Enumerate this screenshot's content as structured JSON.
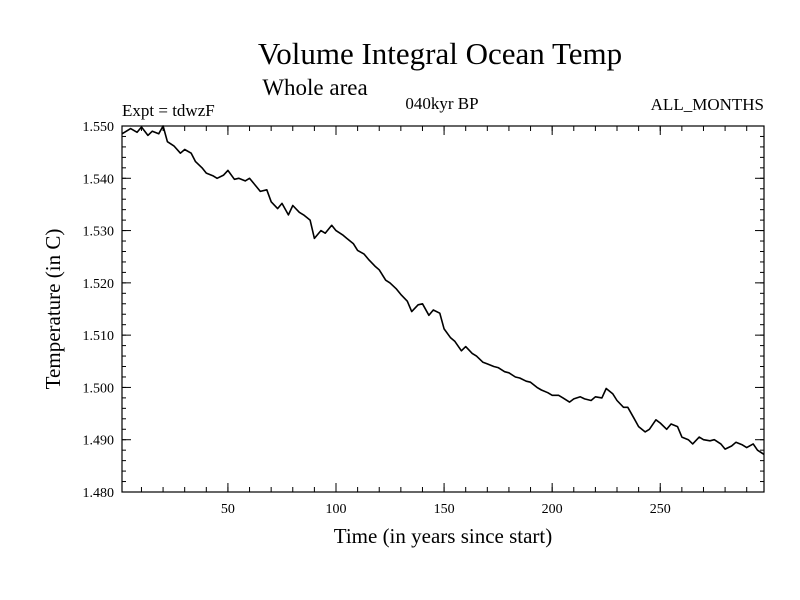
{
  "chart_data": {
    "type": "line",
    "title": "Volume Integral Ocean Temp",
    "subtitle": "Whole area",
    "annotations": {
      "expt": "Expt = tdwzF",
      "period": "040kyr BP",
      "months": "ALL_MONTHS"
    },
    "xlabel": "Time (in years since start)",
    "ylabel": "Temperature (in C)",
    "xlim": [
      1,
      298
    ],
    "ylim": [
      1.48,
      1.55
    ],
    "xticks": [
      50,
      100,
      150,
      200,
      250
    ],
    "yticks": [
      "1.480",
      "1.490",
      "1.500",
      "1.510",
      "1.520",
      "1.530",
      "1.540",
      "1.550"
    ],
    "grid": false,
    "line_color": "#000000",
    "series": [
      {
        "x": [
          1,
          5,
          8,
          10,
          13,
          15,
          18,
          20,
          22,
          25,
          28,
          30,
          33,
          35,
          38,
          40,
          43,
          45,
          48,
          50,
          53,
          55,
          58,
          60,
          63,
          65,
          68,
          70,
          73,
          75,
          78,
          80,
          83,
          85,
          88,
          90,
          93,
          95,
          98,
          100,
          103,
          105,
          108,
          110,
          113,
          115,
          118,
          120,
          123,
          125,
          128,
          130,
          133,
          135,
          138,
          140,
          143,
          145,
          148,
          150,
          153,
          155,
          158,
          160,
          163,
          165,
          168,
          170,
          173,
          175,
          178,
          180,
          183,
          185,
          188,
          190,
          193,
          195,
          198,
          200,
          203,
          205,
          208,
          210,
          213,
          215,
          218,
          220,
          223,
          225,
          228,
          230,
          233,
          235,
          238,
          240,
          243,
          245,
          248,
          250,
          253,
          255,
          258,
          260,
          263,
          265,
          268,
          270,
          273,
          275,
          278,
          280,
          283,
          285,
          288,
          290,
          293,
          295,
          298
        ],
        "y": [
          1.5485,
          1.5495,
          1.5488,
          1.5498,
          1.5482,
          1.549,
          1.5485,
          1.55,
          1.547,
          1.5462,
          1.5448,
          1.5455,
          1.5448,
          1.5432,
          1.542,
          1.541,
          1.5405,
          1.54,
          1.5406,
          1.5415,
          1.5398,
          1.54,
          1.5395,
          1.54,
          1.5385,
          1.5375,
          1.5378,
          1.5355,
          1.5342,
          1.5352,
          1.533,
          1.5348,
          1.5335,
          1.533,
          1.532,
          1.5285,
          1.53,
          1.5295,
          1.531,
          1.53,
          1.5292,
          1.5285,
          1.5275,
          1.5262,
          1.5255,
          1.5245,
          1.5232,
          1.5225,
          1.5205,
          1.52,
          1.5188,
          1.5178,
          1.5165,
          1.5145,
          1.5158,
          1.516,
          1.5138,
          1.5148,
          1.5142,
          1.5112,
          1.5095,
          1.5088,
          1.507,
          1.5078,
          1.5065,
          1.506,
          1.5048,
          1.5045,
          1.504,
          1.5038,
          1.503,
          1.5028,
          1.502,
          1.5018,
          1.5012,
          1.501,
          1.5,
          1.4995,
          1.499,
          1.4985,
          1.4985,
          1.498,
          1.4972,
          1.4978,
          1.4982,
          1.4978,
          1.4975,
          1.4982,
          1.498,
          1.4998,
          1.4988,
          1.4975,
          1.4962,
          1.4962,
          1.494,
          1.4925,
          1.4915,
          1.492,
          1.4938,
          1.4932,
          1.492,
          1.493,
          1.4925,
          1.4905,
          1.49,
          1.4892,
          1.4905,
          1.49,
          1.4898,
          1.49,
          1.4892,
          1.4882,
          1.4888,
          1.4895,
          1.489,
          1.4885,
          1.4892,
          1.488,
          1.4872
        ]
      }
    ]
  }
}
